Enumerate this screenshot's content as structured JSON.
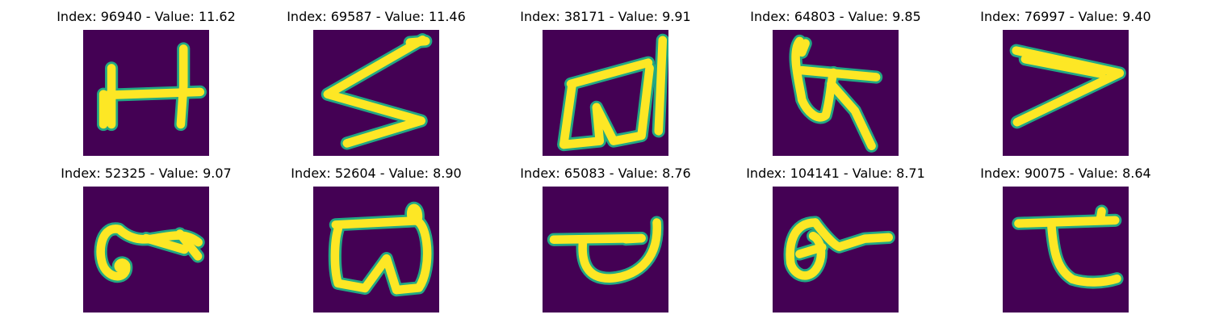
{
  "colors": {
    "background": "#440154",
    "stroke_core": "#fde725",
    "stroke_edge": "#22a884"
  },
  "images": [
    {
      "title": "Index: 96940 - Value: 11.62",
      "glyph": "H-like character"
    },
    {
      "title": "Index: 69587 - Value: 11.46",
      "glyph": "S-like zigzag character"
    },
    {
      "title": "Index: 38171 - Value: 9.91",
      "glyph": "w-like character with vertical bar"
    },
    {
      "title": "Index: 64803 - Value: 9.85",
      "glyph": "loop character with crossbar"
    },
    {
      "title": "Index: 76997 - Value: 9.40",
      "glyph": "greater-than-like character"
    },
    {
      "title": "Index: 52325 - Value: 9.07",
      "glyph": "curled hook character"
    },
    {
      "title": "Index: 52604 - Value: 8.90",
      "glyph": "w-like character with loop"
    },
    {
      "title": "Index: 65083 - Value: 8.76",
      "glyph": "bowl character with crossbar"
    },
    {
      "title": "Index: 104141 - Value: 8.71",
      "glyph": "circle with tail character"
    },
    {
      "title": "Index: 90075 - Value: 8.64",
      "glyph": "crossbar with curved stem character"
    }
  ]
}
